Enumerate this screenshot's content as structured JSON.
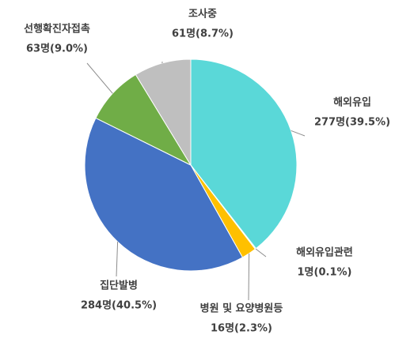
{
  "chart_data": {
    "type": "pie",
    "categories": [
      "해외유입",
      "해외유입관련",
      "병원 및 요양병원등",
      "집단발병",
      "선행확진자접촉",
      "조사중"
    ],
    "values": [
      277,
      1,
      16,
      284,
      63,
      61
    ],
    "value_labels": [
      "277명(39.5%)",
      "1명(0.1%)",
      "16명(2.3%)",
      "284명(40.5%)",
      "63명(9.0%)",
      "61명(8.7%)"
    ],
    "colors": [
      "#5ad8d8",
      "#9dc3e6",
      "#ffc000",
      "#4472c4",
      "#70ad47",
      "#bfbfbf"
    ]
  }
}
